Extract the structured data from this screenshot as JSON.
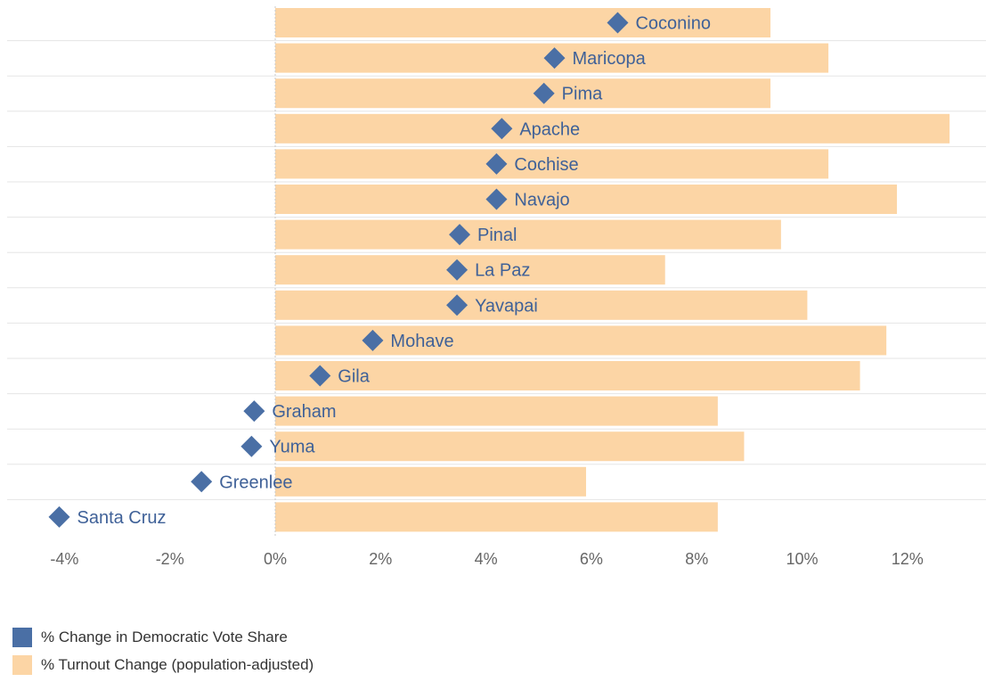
{
  "chart_data": {
    "type": "bar",
    "orientation": "horizontal",
    "categories": [
      "Coconino",
      "Maricopa",
      "Pima",
      "Apache",
      "Cochise",
      "Navajo",
      "Pinal",
      "La Paz",
      "Yavapai",
      "Mohave",
      "Gila",
      "Graham",
      "Yuma",
      "Greenlee",
      "Santa Cruz"
    ],
    "series": [
      {
        "name": "% Turnout Change (population-adjusted)",
        "mark": "bar",
        "color": "#fcd5a5",
        "values": [
          9.4,
          10.5,
          9.4,
          12.8,
          10.5,
          11.8,
          9.6,
          7.4,
          10.1,
          11.6,
          11.1,
          8.4,
          8.9,
          5.9,
          8.4
        ]
      },
      {
        "name": "% Change in Democratic Vote Share",
        "mark": "diamond",
        "color": "#4a6fa5",
        "values": [
          6.5,
          5.3,
          5.1,
          4.3,
          4.2,
          4.2,
          3.5,
          3.45,
          3.45,
          1.85,
          0.85,
          -0.4,
          -0.45,
          -1.4,
          -4.1
        ]
      }
    ],
    "xlim": [
      -5.1,
      13.3
    ],
    "xticks": [
      -4,
      -2,
      0,
      2,
      4,
      6,
      8,
      10,
      12
    ],
    "xtick_labels": [
      "-4%",
      "-2%",
      "0%",
      "2%",
      "4%",
      "6%",
      "8%",
      "10%",
      "12%"
    ],
    "title": "",
    "xlabel": "",
    "ylabel": "",
    "grid": true,
    "legend_position": "bottom-left",
    "label_color": "#3f6198",
    "tick_label_color": "#666666",
    "zero_line_color": "#c9c9c9",
    "grid_color": "#e5e5e5"
  },
  "legend": {
    "items": [
      {
        "label": "% Change in Democratic Vote Share",
        "color": "#4a6fa5"
      },
      {
        "label": "% Turnout Change (population-adjusted)",
        "color": "#fcd5a5"
      }
    ]
  }
}
